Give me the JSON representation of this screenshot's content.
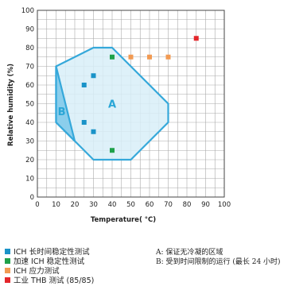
{
  "chart_data": {
    "type": "scatter",
    "xlabel": "Temperature( °C)",
    "ylabel": "Relative humidity (%)",
    "xlim": [
      0,
      100
    ],
    "ylim": [
      0,
      100
    ],
    "x_ticks": [
      0,
      10,
      20,
      30,
      40,
      50,
      60,
      70,
      80,
      90,
      100
    ],
    "y_ticks": [
      0,
      10,
      20,
      30,
      40,
      50,
      60,
      70,
      80,
      90,
      100
    ],
    "grid": true,
    "regions": [
      {
        "label": "A",
        "vertices": [
          [
            10,
            70
          ],
          [
            30,
            80
          ],
          [
            40,
            80
          ],
          [
            70,
            50
          ],
          [
            70,
            40
          ],
          [
            50,
            20
          ],
          [
            30,
            20
          ],
          [
            10,
            40
          ]
        ],
        "label_position": [
          40,
          50
        ],
        "fill": "#d8eef8",
        "stroke": "#35a8da"
      },
      {
        "label": "B",
        "vertices": [
          [
            10,
            70
          ],
          [
            10,
            40
          ],
          [
            20,
            30
          ]
        ],
        "label_position": [
          13,
          46
        ],
        "fill": "#7cc8ea",
        "stroke": "#35a8da"
      }
    ],
    "series": [
      {
        "name": "ICH 长时间稳定性测试",
        "color": "#1a93c8",
        "points": [
          [
            25,
            60
          ],
          [
            30,
            65
          ],
          [
            25,
            40
          ],
          [
            30,
            35
          ]
        ]
      },
      {
        "name": "加速 ICH 稳定性测试",
        "color": "#1fa14a",
        "points": [
          [
            40,
            75
          ],
          [
            40,
            25
          ]
        ]
      },
      {
        "name": "ICH 应力测试",
        "color": "#f29a52",
        "points": [
          [
            50,
            75
          ],
          [
            60,
            75
          ],
          [
            70,
            75
          ]
        ]
      },
      {
        "name": "工业 THB 测试 (85/85)",
        "color": "#e4262b",
        "points": [
          [
            85,
            85
          ]
        ]
      }
    ],
    "notes": [
      "A: 保证无冷凝的区域",
      "B: 受到时间限制的运行 (最长 24 小时)"
    ]
  }
}
